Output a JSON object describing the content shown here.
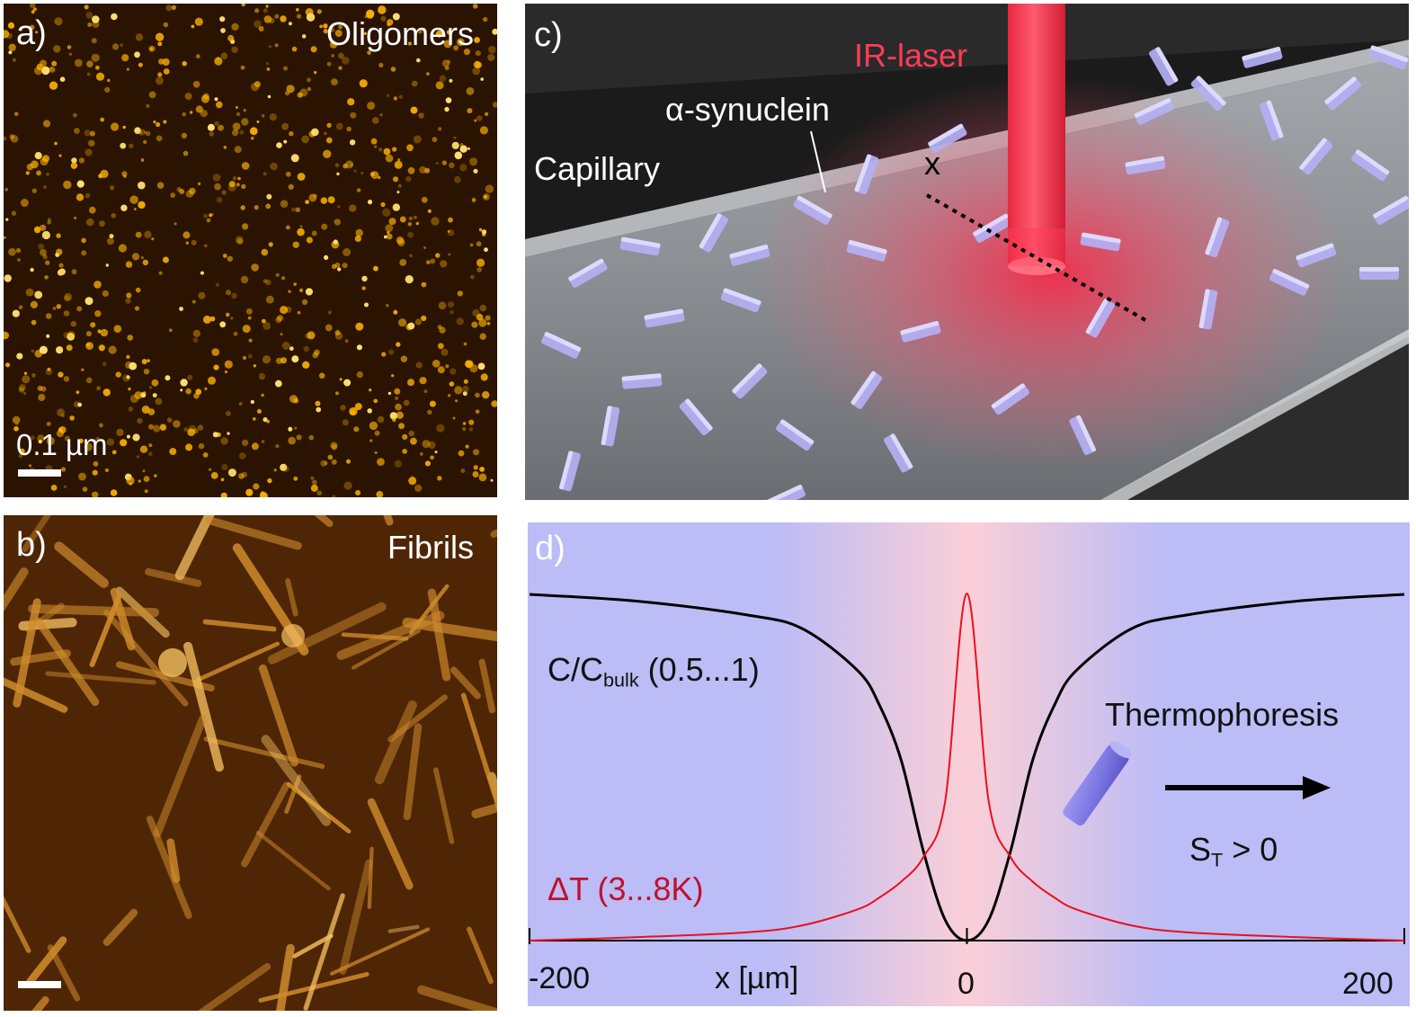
{
  "panel_a": {
    "letter": "a)",
    "title": "Oligomers",
    "scale_label": "0.1 µm",
    "colors": {
      "background": "#2a1300",
      "particle": "#ffb400",
      "particle_bright": "#ffe070"
    }
  },
  "panel_b": {
    "letter": "b)",
    "title": "Fibrils",
    "colors": {
      "background": "#4e2606",
      "fibril": "#d08c2c",
      "fibril_bright": "#f5c060"
    }
  },
  "panel_c": {
    "letter": "c)",
    "laser_label": "IR-laser",
    "protein_label": "α-synuclein",
    "capillary_label": "Capillary",
    "axis_label": "x",
    "colors": {
      "laser": "#ff3c55",
      "capillary": "#8a8d91",
      "protein": "#b4b0f4"
    }
  },
  "panel_d": {
    "letter": "d)",
    "concentration_label_main": "C/C",
    "concentration_label_sub": "bulk",
    "concentration_label_range": " (0.5...1)",
    "temperature_label": "ΔT (3...8K)",
    "thermophoresis_label": "Thermophoresis",
    "soret_label_main": "S",
    "soret_label_sub": "T",
    "soret_label_rest": " > 0",
    "colors": {
      "background": "#bcbcf6",
      "center": "#fbcfd7",
      "concentration_curve": "#000000",
      "temperature_curve": "#e8111d",
      "temperature_text": "#c0102e"
    }
  },
  "chart_data": {
    "type": "line",
    "xlabel": "x [µm]",
    "xlim": [
      -200,
      200
    ],
    "x_ticks": [
      "-200",
      "0",
      "200"
    ],
    "series": [
      {
        "name": "C/Cbulk (0.5...1)",
        "x": [
          -200,
          -150,
          -100,
          -75,
          -50,
          -40,
          -30,
          -20,
          -10,
          0,
          10,
          20,
          30,
          40,
          50,
          75,
          100,
          150,
          200
        ],
        "y": [
          1.0,
          0.99,
          0.97,
          0.95,
          0.89,
          0.84,
          0.76,
          0.63,
          0.53,
          0.5,
          0.53,
          0.63,
          0.76,
          0.84,
          0.89,
          0.95,
          0.97,
          0.99,
          1.0
        ]
      },
      {
        "name": "ΔT (3...8K)",
        "x": [
          -200,
          -150,
          -100,
          -75,
          -50,
          -40,
          -30,
          -20,
          -10,
          0,
          10,
          20,
          30,
          40,
          50,
          75,
          100,
          150,
          200
        ],
        "y": [
          0.0,
          0.05,
          0.12,
          0.22,
          0.45,
          0.62,
          0.85,
          1.2,
          2.0,
          5.0,
          2.0,
          1.2,
          0.85,
          0.62,
          0.45,
          0.22,
          0.12,
          0.05,
          0.0
        ]
      }
    ]
  }
}
